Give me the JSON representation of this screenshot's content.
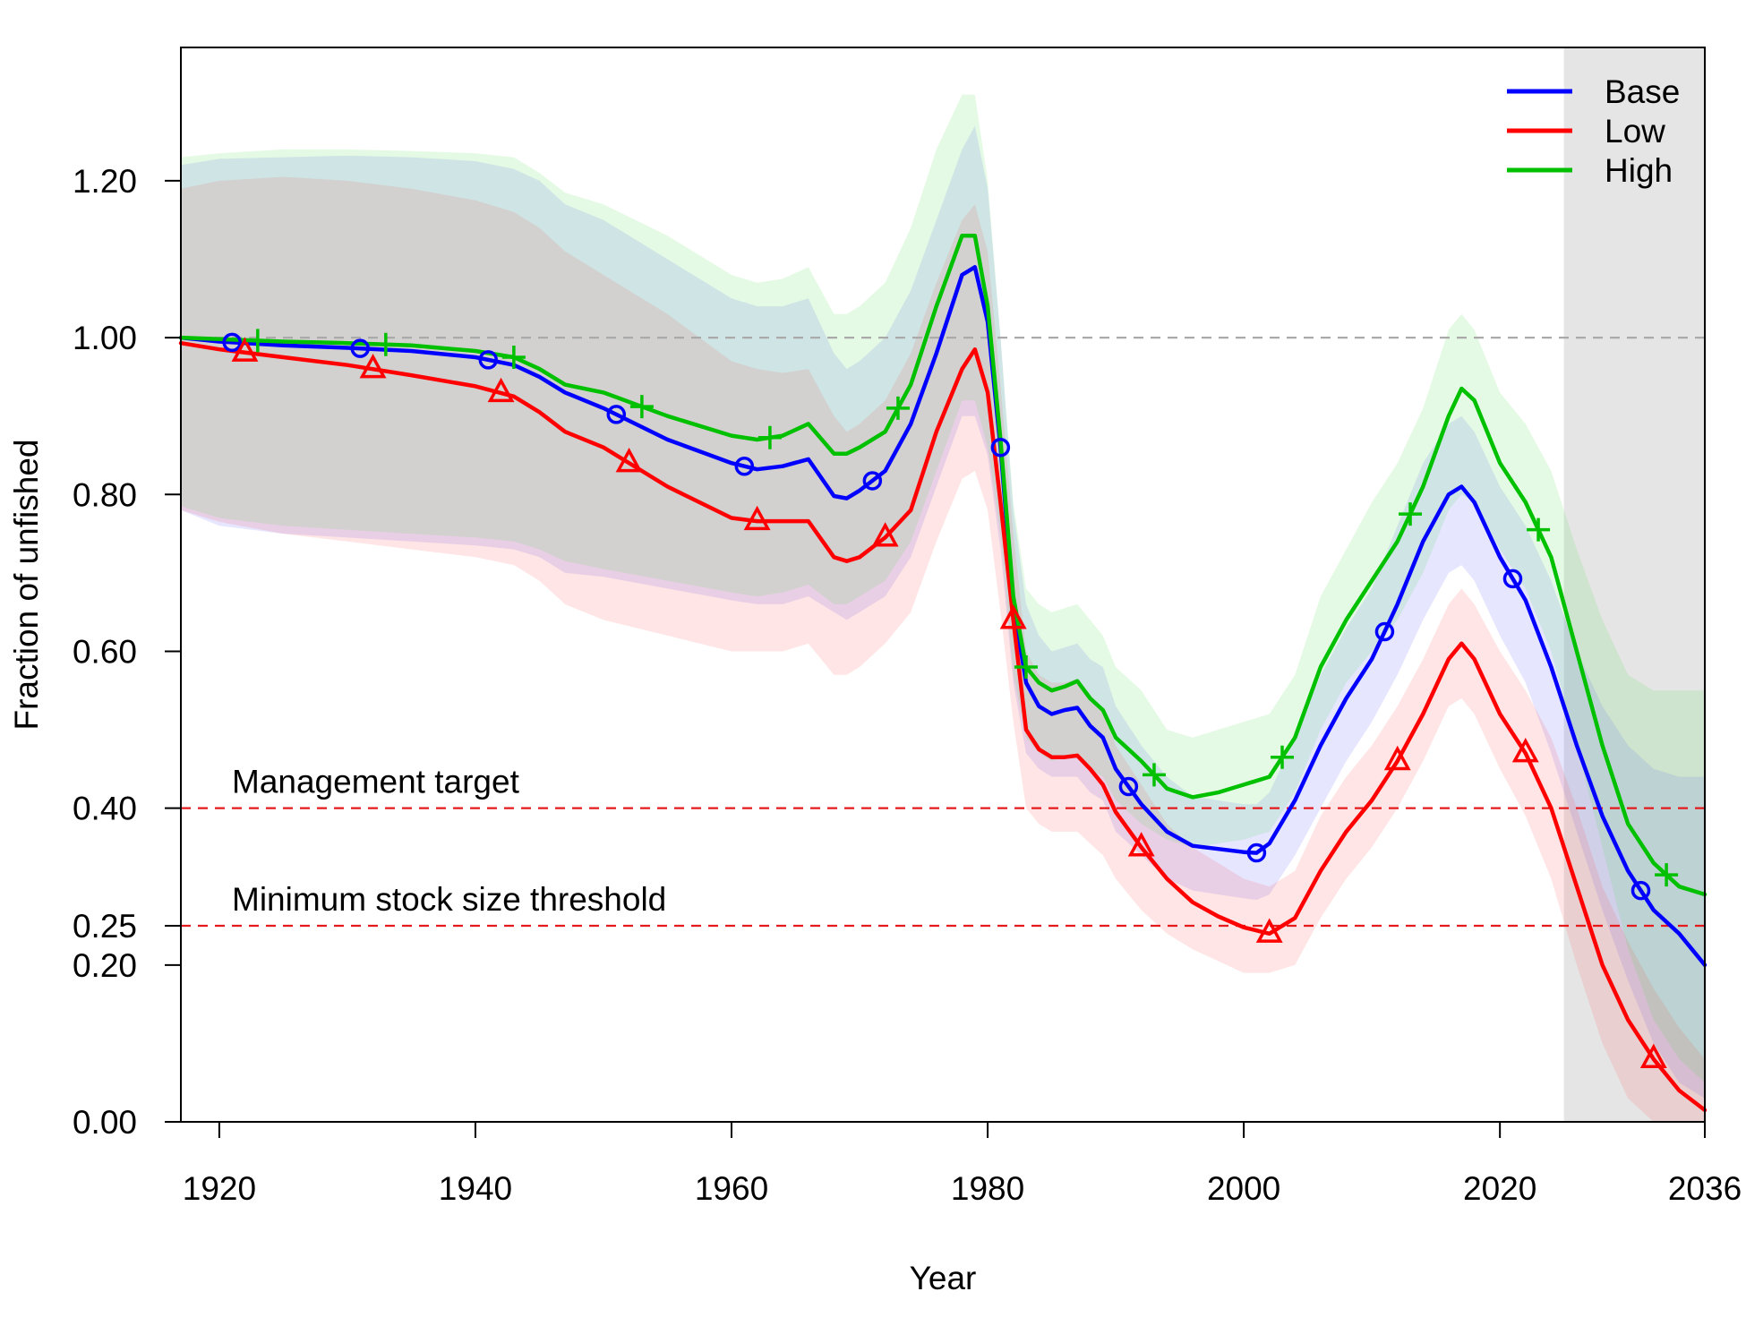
{
  "chart_data": {
    "type": "line",
    "xlabel": "Year",
    "ylabel": "Fraction of unfished",
    "xlim": [
      1917,
      2036
    ],
    "ylim": [
      0,
      1.37
    ],
    "x_ticks": [
      1920,
      1940,
      1960,
      1980,
      2000,
      2020,
      2036
    ],
    "y_ticks": [
      {
        "value": 0.0,
        "label": "0.00"
      },
      {
        "value": 0.2,
        "label": "0.20"
      },
      {
        "value": 0.25,
        "label": "0.25"
      },
      {
        "value": 0.4,
        "label": "0.40"
      },
      {
        "value": 0.6,
        "label": "0.60"
      },
      {
        "value": 0.8,
        "label": "0.80"
      },
      {
        "value": 1.0,
        "label": "1.00"
      },
      {
        "value": 1.2,
        "label": "1.20"
      }
    ],
    "forecast_region": {
      "start": 2025,
      "end": 2036,
      "color": "#e5e5e5"
    },
    "reference_lines": [
      {
        "y": 1.0,
        "color": "#aaaaaa",
        "label": ""
      },
      {
        "y": 0.4,
        "color": "#e41a1c",
        "label": "Management target"
      },
      {
        "y": 0.25,
        "color": "#e41a1c",
        "label": "Minimum stock size threshold"
      }
    ],
    "legend": {
      "position": "top-right"
    },
    "series": [
      {
        "name": "Base",
        "color": "#0000ff",
        "band_fill": "rgba(90,90,255,0.15)",
        "marker": "circle",
        "x": [
          1917,
          1920,
          1925,
          1930,
          1935,
          1940,
          1943,
          1945,
          1947,
          1950,
          1955,
          1960,
          1962,
          1964,
          1966,
          1968,
          1969,
          1970,
          1972,
          1974,
          1976,
          1978,
          1979,
          1980,
          1981,
          1982,
          1983,
          1984,
          1985,
          1986,
          1987,
          1988,
          1989,
          1990,
          1992,
          1994,
          1996,
          1998,
          2000,
          2001,
          2002,
          2004,
          2006,
          2008,
          2010,
          2012,
          2014,
          2016,
          2017,
          2018,
          2020,
          2022,
          2024,
          2026,
          2028,
          2030,
          2032,
          2034,
          2036
        ],
        "y": [
          1.0,
          0.995,
          0.99,
          0.987,
          0.983,
          0.975,
          0.965,
          0.95,
          0.93,
          0.91,
          0.87,
          0.84,
          0.832,
          0.836,
          0.845,
          0.798,
          0.795,
          0.805,
          0.83,
          0.89,
          0.98,
          1.08,
          1.09,
          1.02,
          0.86,
          0.66,
          0.56,
          0.53,
          0.52,
          0.525,
          0.528,
          0.505,
          0.49,
          0.45,
          0.405,
          0.37,
          0.352,
          0.348,
          0.344,
          0.343,
          0.355,
          0.41,
          0.48,
          0.54,
          0.59,
          0.66,
          0.74,
          0.8,
          0.81,
          0.79,
          0.72,
          0.665,
          0.58,
          0.48,
          0.39,
          0.32,
          0.27,
          0.24,
          0.2
        ],
        "lower": [
          0.78,
          0.76,
          0.75,
          0.745,
          0.74,
          0.735,
          0.73,
          0.72,
          0.7,
          0.695,
          0.68,
          0.665,
          0.66,
          0.66,
          0.67,
          0.65,
          0.64,
          0.65,
          0.67,
          0.72,
          0.81,
          0.9,
          0.9,
          0.85,
          0.73,
          0.56,
          0.47,
          0.45,
          0.44,
          0.44,
          0.44,
          0.42,
          0.41,
          0.37,
          0.34,
          0.31,
          0.295,
          0.29,
          0.285,
          0.283,
          0.29,
          0.34,
          0.4,
          0.46,
          0.51,
          0.57,
          0.64,
          0.7,
          0.71,
          0.69,
          0.62,
          0.56,
          0.47,
          0.37,
          0.27,
          0.18,
          0.1,
          0.05,
          0.03
        ],
        "upper": [
          1.22,
          1.228,
          1.23,
          1.232,
          1.23,
          1.225,
          1.215,
          1.2,
          1.17,
          1.15,
          1.1,
          1.05,
          1.04,
          1.04,
          1.05,
          0.98,
          0.96,
          0.97,
          1.0,
          1.06,
          1.15,
          1.24,
          1.27,
          1.19,
          1.0,
          0.78,
          0.66,
          0.62,
          0.6,
          0.605,
          0.61,
          0.59,
          0.58,
          0.53,
          0.48,
          0.44,
          0.415,
          0.41,
          0.405,
          0.405,
          0.42,
          0.49,
          0.57,
          0.63,
          0.68,
          0.76,
          0.84,
          0.89,
          0.9,
          0.88,
          0.81,
          0.76,
          0.69,
          0.6,
          0.53,
          0.48,
          0.45,
          0.44,
          0.44
        ],
        "markers_x": [
          1921,
          1931,
          1941,
          1951,
          1961,
          1971,
          1981,
          1991,
          2001,
          2011,
          2021,
          2031
        ]
      },
      {
        "name": "Low",
        "color": "#ff0000",
        "band_fill": "rgba(255,80,80,0.15)",
        "marker": "triangle",
        "x": [
          1917,
          1920,
          1925,
          1930,
          1935,
          1940,
          1943,
          1945,
          1947,
          1950,
          1955,
          1960,
          1962,
          1964,
          1966,
          1968,
          1969,
          1970,
          1972,
          1974,
          1976,
          1978,
          1979,
          1980,
          1981,
          1982,
          1983,
          1984,
          1985,
          1986,
          1987,
          1988,
          1989,
          1990,
          1992,
          1994,
          1996,
          1998,
          2000,
          2002,
          2004,
          2006,
          2008,
          2010,
          2012,
          2014,
          2016,
          2017,
          2018,
          2020,
          2022,
          2024,
          2026,
          2028,
          2030,
          2032,
          2034,
          2036
        ],
        "y": [
          0.993,
          0.985,
          0.975,
          0.965,
          0.952,
          0.938,
          0.925,
          0.905,
          0.88,
          0.86,
          0.81,
          0.77,
          0.766,
          0.766,
          0.766,
          0.72,
          0.715,
          0.72,
          0.745,
          0.78,
          0.88,
          0.96,
          0.985,
          0.93,
          0.79,
          0.64,
          0.5,
          0.475,
          0.465,
          0.465,
          0.467,
          0.45,
          0.43,
          0.395,
          0.35,
          0.31,
          0.28,
          0.262,
          0.248,
          0.24,
          0.26,
          0.32,
          0.37,
          0.41,
          0.46,
          0.52,
          0.59,
          0.61,
          0.59,
          0.52,
          0.47,
          0.4,
          0.3,
          0.2,
          0.13,
          0.08,
          0.04,
          0.015
        ],
        "lower": [
          0.78,
          0.765,
          0.75,
          0.74,
          0.73,
          0.72,
          0.71,
          0.69,
          0.66,
          0.64,
          0.62,
          0.6,
          0.6,
          0.6,
          0.61,
          0.57,
          0.57,
          0.58,
          0.61,
          0.65,
          0.74,
          0.82,
          0.83,
          0.78,
          0.65,
          0.51,
          0.4,
          0.38,
          0.37,
          0.37,
          0.37,
          0.355,
          0.34,
          0.31,
          0.27,
          0.24,
          0.22,
          0.205,
          0.19,
          0.19,
          0.2,
          0.26,
          0.31,
          0.35,
          0.4,
          0.46,
          0.53,
          0.54,
          0.52,
          0.45,
          0.39,
          0.31,
          0.2,
          0.1,
          0.03,
          0.0,
          0.0,
          0.0
        ],
        "upper": [
          1.19,
          1.2,
          1.205,
          1.2,
          1.19,
          1.175,
          1.16,
          1.14,
          1.11,
          1.08,
          1.03,
          0.97,
          0.96,
          0.955,
          0.96,
          0.9,
          0.88,
          0.89,
          0.92,
          0.98,
          1.07,
          1.15,
          1.17,
          1.11,
          0.94,
          0.75,
          0.6,
          0.57,
          0.56,
          0.56,
          0.565,
          0.545,
          0.525,
          0.48,
          0.43,
          0.38,
          0.35,
          0.33,
          0.31,
          0.3,
          0.32,
          0.39,
          0.44,
          0.48,
          0.53,
          0.59,
          0.66,
          0.68,
          0.66,
          0.6,
          0.55,
          0.49,
          0.4,
          0.3,
          0.23,
          0.17,
          0.12,
          0.08
        ]
      },
      {
        "name": "High",
        "color": "#00c000",
        "band_fill": "rgba(80,220,80,0.15)",
        "marker": "plus",
        "x": [
          1917,
          1920,
          1925,
          1930,
          1935,
          1940,
          1943,
          1945,
          1947,
          1950,
          1955,
          1960,
          1962,
          1964,
          1966,
          1968,
          1969,
          1970,
          1972,
          1974,
          1976,
          1978,
          1979,
          1980,
          1981,
          1982,
          1983,
          1984,
          1985,
          1986,
          1987,
          1988,
          1989,
          1990,
          1992,
          1994,
          1996,
          1998,
          2000,
          2002,
          2004,
          2006,
          2008,
          2010,
          2012,
          2014,
          2016,
          2017,
          2018,
          2020,
          2022,
          2024,
          2026,
          2028,
          2030,
          2032,
          2034,
          2036
        ],
        "y": [
          1.0,
          0.998,
          0.995,
          0.993,
          0.99,
          0.983,
          0.975,
          0.96,
          0.94,
          0.93,
          0.9,
          0.875,
          0.87,
          0.875,
          0.89,
          0.852,
          0.852,
          0.86,
          0.88,
          0.94,
          1.04,
          1.13,
          1.13,
          1.04,
          0.87,
          0.67,
          0.58,
          0.56,
          0.55,
          0.555,
          0.562,
          0.54,
          0.525,
          0.49,
          0.46,
          0.425,
          0.414,
          0.42,
          0.43,
          0.44,
          0.49,
          0.58,
          0.64,
          0.69,
          0.74,
          0.81,
          0.9,
          0.935,
          0.92,
          0.84,
          0.79,
          0.72,
          0.6,
          0.48,
          0.38,
          0.33,
          0.3,
          0.29
        ],
        "lower": [
          0.785,
          0.77,
          0.76,
          0.755,
          0.75,
          0.745,
          0.74,
          0.73,
          0.715,
          0.705,
          0.69,
          0.675,
          0.67,
          0.675,
          0.685,
          0.66,
          0.66,
          0.67,
          0.69,
          0.74,
          0.83,
          0.92,
          0.92,
          0.86,
          0.75,
          0.57,
          0.49,
          0.47,
          0.46,
          0.465,
          0.47,
          0.45,
          0.44,
          0.41,
          0.38,
          0.36,
          0.35,
          0.355,
          0.36,
          0.37,
          0.42,
          0.5,
          0.56,
          0.6,
          0.64,
          0.7,
          0.78,
          0.8,
          0.79,
          0.73,
          0.68,
          0.6,
          0.48,
          0.35,
          0.22,
          0.13,
          0.08,
          0.05
        ],
        "upper": [
          1.23,
          1.235,
          1.24,
          1.24,
          1.238,
          1.235,
          1.23,
          1.21,
          1.185,
          1.17,
          1.13,
          1.08,
          1.07,
          1.075,
          1.09,
          1.03,
          1.03,
          1.04,
          1.07,
          1.14,
          1.24,
          1.31,
          1.31,
          1.2,
          1.0,
          0.79,
          0.68,
          0.66,
          0.65,
          0.655,
          0.66,
          0.64,
          0.62,
          0.58,
          0.55,
          0.5,
          0.49,
          0.5,
          0.51,
          0.52,
          0.57,
          0.67,
          0.73,
          0.79,
          0.84,
          0.91,
          1.01,
          1.03,
          1.01,
          0.93,
          0.89,
          0.83,
          0.73,
          0.64,
          0.57,
          0.55,
          0.55,
          0.55
        ]
      }
    ]
  }
}
